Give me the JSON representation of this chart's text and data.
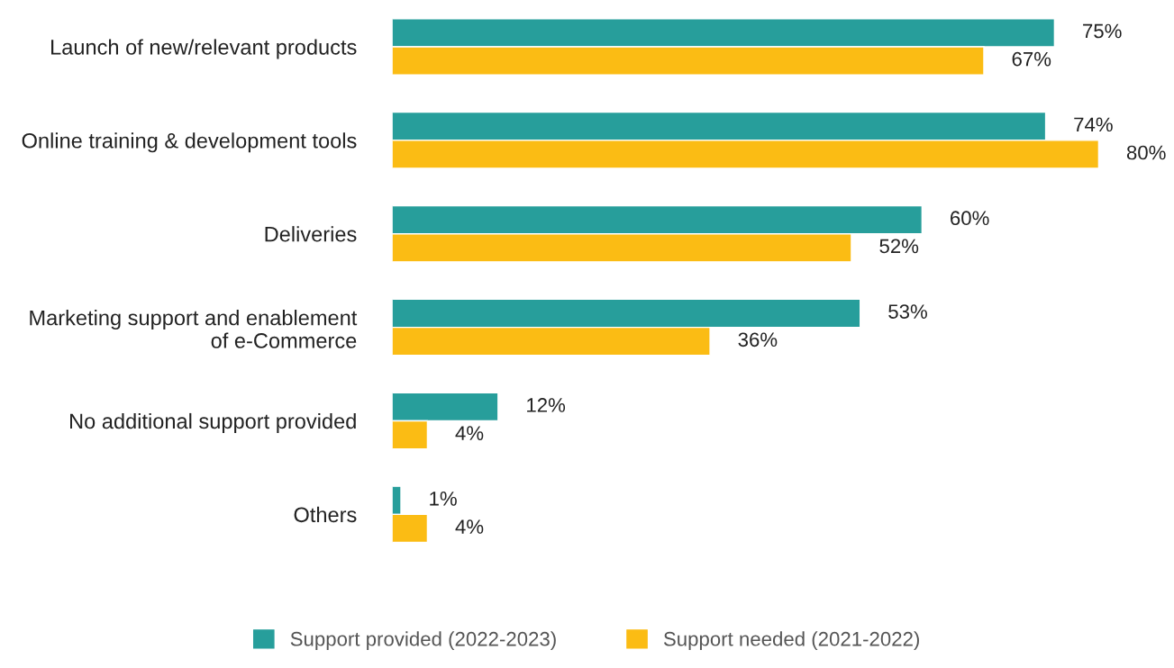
{
  "chart_data": {
    "type": "bar",
    "orientation": "horizontal",
    "legend": "bottom",
    "grid": false,
    "tick_labels": "y",
    "categories": [
      "Launch of new/relevant products",
      "Online training & development tools",
      "Deliveries",
      "Marketing support and enablement\nof e-Commerce",
      "No additional support provided",
      "Others"
    ],
    "series": [
      {
        "name": "Support provided (2022-2023)",
        "color": "#279e9b",
        "values": [
          75,
          74,
          60,
          53,
          12,
          1
        ],
        "value_labels": [
          "75%",
          "74%",
          "60%",
          "53%",
          "12%",
          "1%"
        ]
      },
      {
        "name": "Support needed (2021-2022)",
        "color": "#fbbc14",
        "values": [
          67,
          80,
          52,
          36,
          4,
          4
        ],
        "value_labels": [
          "67%",
          "80%",
          "52%",
          "36%",
          "4%",
          "4%"
        ]
      }
    ]
  }
}
